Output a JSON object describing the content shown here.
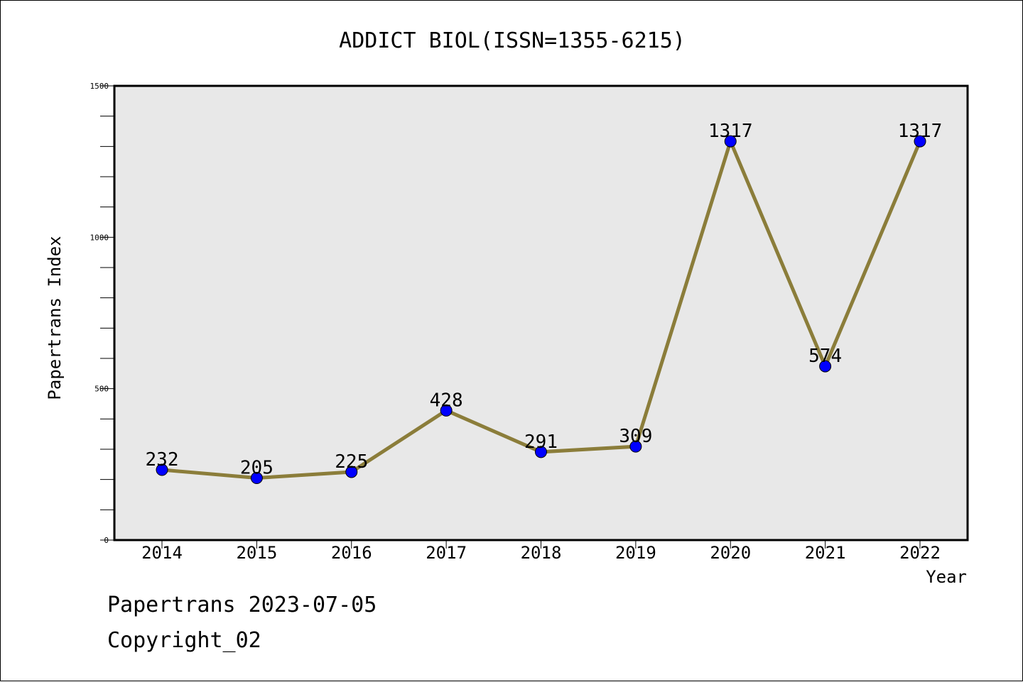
{
  "chart_data": {
    "type": "line",
    "title": "ADDICT BIOL(ISSN=1355-6215)",
    "xlabel": "Year",
    "ylabel": "Papertrans Index",
    "categories": [
      "2014",
      "2015",
      "2016",
      "2017",
      "2018",
      "2019",
      "2020",
      "2021",
      "2022"
    ],
    "series": [
      {
        "values": [
          232,
          205,
          225,
          428,
          291,
          309,
          1317,
          574,
          1317
        ]
      }
    ],
    "ylim": [
      0,
      1500
    ],
    "yticks": [
      "0",
      "500",
      "1000",
      "1500"
    ],
    "grid": false,
    "line_color": "#8b7d3a",
    "marker_color": "#0000ff",
    "plot_background": "#e8e8e8"
  },
  "footer": {
    "line1": "Papertrans 2023-07-05",
    "line2": "Copyright_02"
  }
}
